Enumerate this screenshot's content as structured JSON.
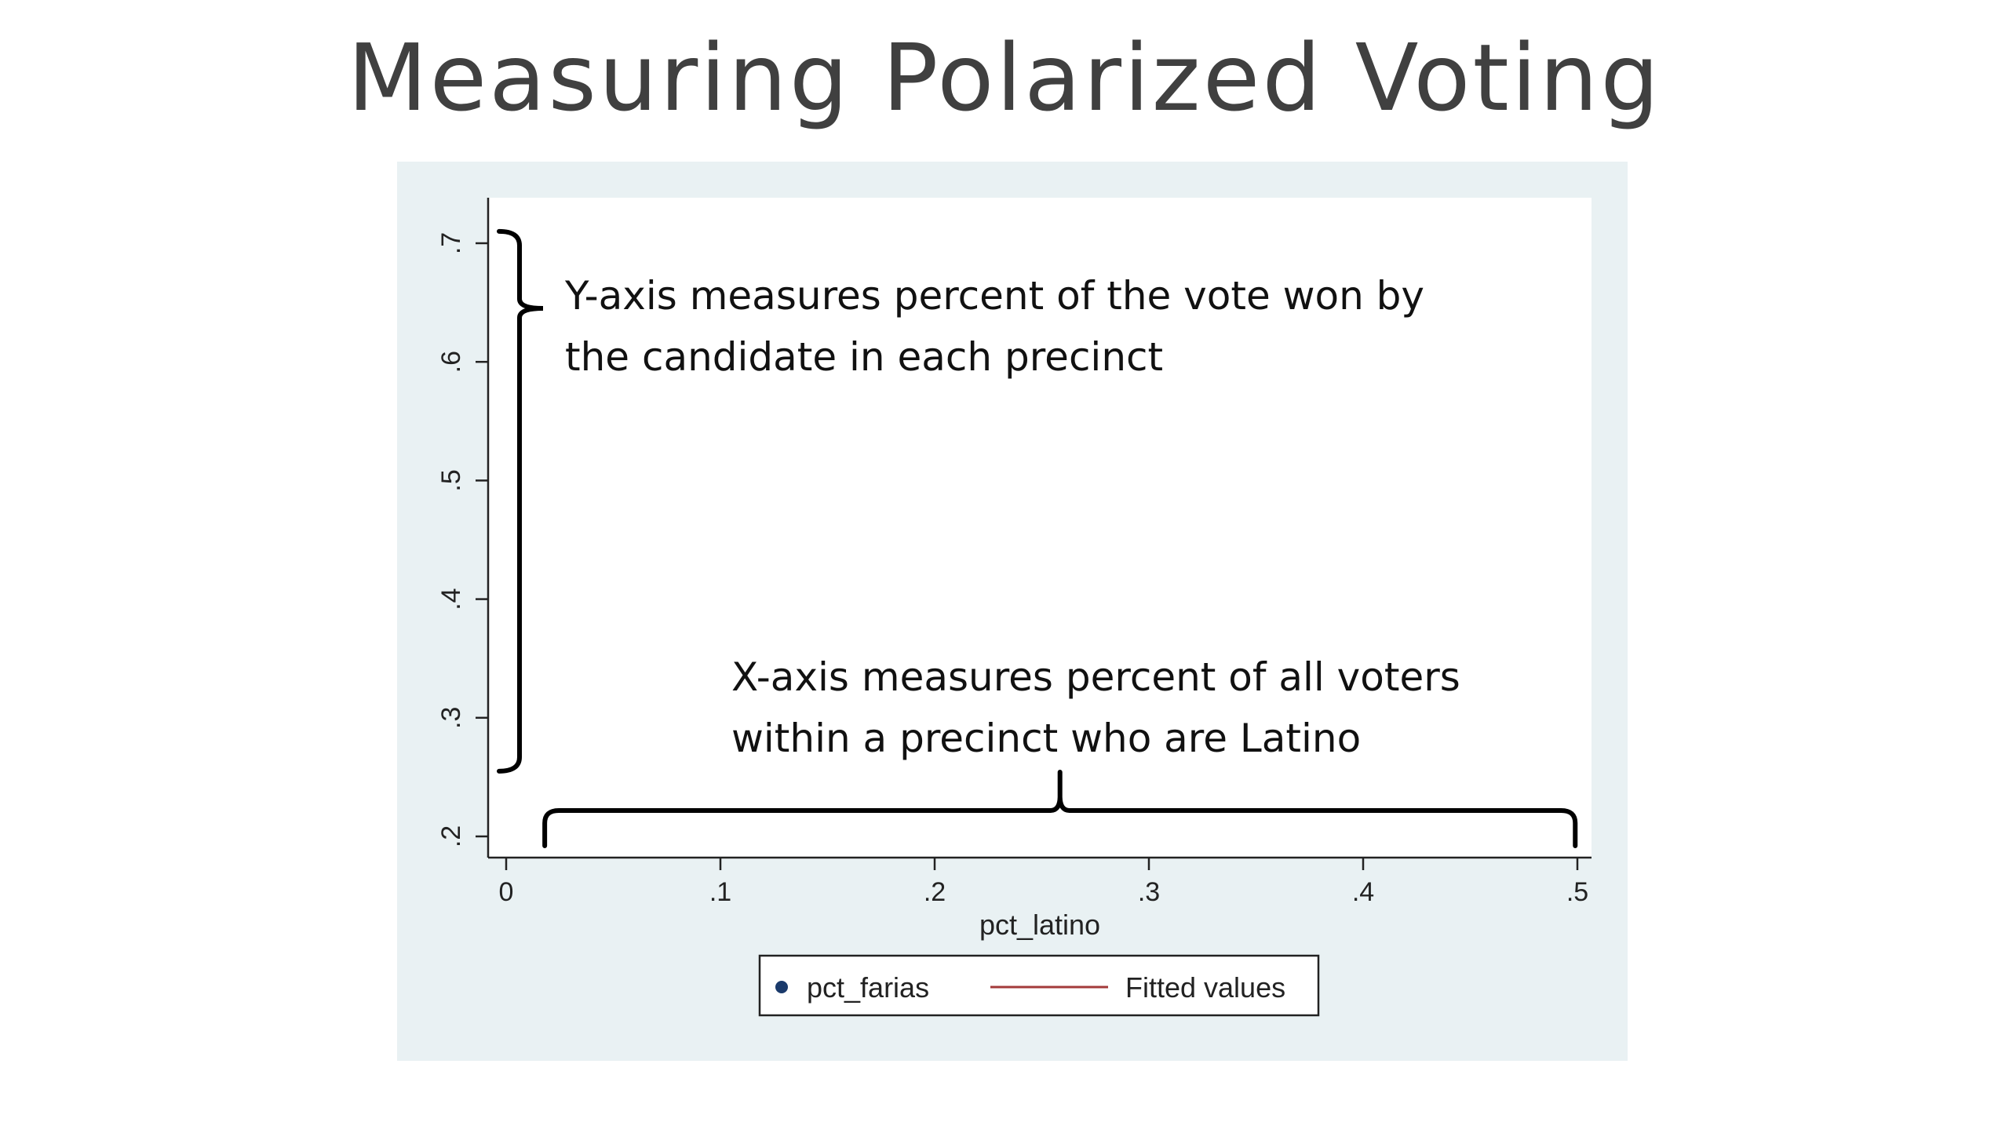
{
  "slide": {
    "title": "Measuring Polarized Voting"
  },
  "chart_data": {
    "type": "scatter",
    "xlabel": "pct_latino",
    "ylabel": "",
    "xlim": [
      0,
      0.5
    ],
    "ylim": [
      0.2,
      0.7
    ],
    "x_ticks": [
      {
        "value": 0,
        "label": "0"
      },
      {
        "value": 0.1,
        "label": ".1"
      },
      {
        "value": 0.2,
        "label": ".2"
      },
      {
        "value": 0.3,
        "label": ".3"
      },
      {
        "value": 0.4,
        "label": ".4"
      },
      {
        "value": 0.5,
        "label": ".5"
      }
    ],
    "y_ticks": [
      {
        "value": 0.2,
        "label": ".2"
      },
      {
        "value": 0.3,
        "label": ".3"
      },
      {
        "value": 0.4,
        "label": ".4"
      },
      {
        "value": 0.5,
        "label": ".5"
      },
      {
        "value": 0.6,
        "label": ".6"
      },
      {
        "value": 0.7,
        "label": ".7"
      }
    ],
    "series": [
      {
        "name": "pct_farias",
        "kind": "scatter",
        "color": "#1a3a6b",
        "points": []
      },
      {
        "name": "Fitted values",
        "kind": "line",
        "color": "#a33a3a",
        "points": []
      }
    ],
    "legend": {
      "position": "bottom",
      "items": [
        {
          "label": "pct_farias",
          "marker": "dot",
          "color": "#1a3a6b"
        },
        {
          "label": "Fitted values",
          "marker": "line",
          "color": "#a33a3a"
        }
      ]
    },
    "grid": false,
    "background": {
      "outer": "#e9f1f3",
      "plot": "#ffffff"
    },
    "annotations": {
      "y_note": {
        "lines": [
          "Y-axis measures percent of the vote won by",
          "the candidate in each precinct"
        ],
        "brace_range": [
          0.255,
          0.71
        ]
      },
      "x_note": {
        "lines": [
          "X-axis measures percent of all voters",
          "within a precinct who are Latino"
        ],
        "brace_range": [
          0.018,
          0.499
        ]
      }
    }
  }
}
